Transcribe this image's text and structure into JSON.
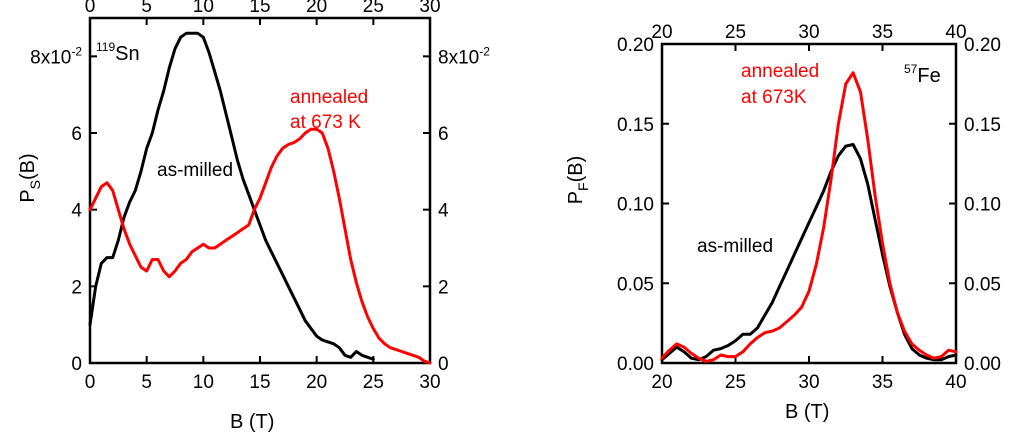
{
  "chart_data": [
    {
      "type": "line",
      "xlabel": "B (T)",
      "ylabel": "P",
      "ylabel_sub": "S",
      "ylabel_suffix": "(B)",
      "isotope_sup": "119",
      "isotope": "Sn",
      "xlim": [
        0,
        30
      ],
      "ylim": [
        0,
        9
      ],
      "x_ticks": [
        0,
        5,
        10,
        15,
        20,
        25,
        30
      ],
      "x_tick_labels": [
        "0",
        "5",
        "10",
        "15",
        "20",
        "25",
        "30"
      ],
      "y_ticks": [
        0,
        2,
        4,
        6,
        8
      ],
      "y_tick_labels": [
        "0",
        "2",
        "4",
        "6",
        "8x10"
      ],
      "y_exp": "-2",
      "grid": false,
      "annotations": [
        {
          "text": "as-milled",
          "color": "#000000"
        },
        {
          "text": "annealed",
          "color": "#ff0000"
        },
        {
          "text": "at 673 K",
          "color": "#ff0000"
        }
      ],
      "series": [
        {
          "color": "#000000",
          "x": [
            0,
            0.5,
            1,
            1.5,
            2,
            2.5,
            3,
            3.5,
            4,
            4.5,
            5,
            5.5,
            6,
            6.5,
            7,
            7.5,
            8,
            8.5,
            9,
            9.5,
            10,
            10.5,
            11,
            11.5,
            12,
            12.5,
            13,
            13.5,
            14,
            14.5,
            15,
            15.5,
            16,
            16.5,
            17,
            17.5,
            18,
            18.5,
            19,
            19.5,
            20,
            20.5,
            21,
            21.5,
            22,
            22.5,
            23,
            23.5,
            24,
            24.5,
            25
          ],
          "y": [
            1.0,
            2.0,
            2.6,
            2.75,
            2.75,
            3.2,
            3.8,
            4.2,
            4.5,
            5.0,
            5.6,
            6.0,
            6.6,
            7.1,
            7.7,
            8.2,
            8.5,
            8.6,
            8.6,
            8.6,
            8.5,
            8.1,
            7.6,
            7.1,
            6.5,
            5.9,
            5.3,
            4.8,
            4.4,
            4.0,
            3.6,
            3.2,
            2.9,
            2.6,
            2.3,
            2.0,
            1.7,
            1.4,
            1.1,
            0.9,
            0.7,
            0.6,
            0.55,
            0.5,
            0.4,
            0.2,
            0.15,
            0.3,
            0.2,
            0.15,
            0.1
          ]
        },
        {
          "color": "#ff0000",
          "x": [
            0,
            0.5,
            1,
            1.5,
            2,
            2.5,
            3,
            3.5,
            4,
            4.5,
            5,
            5.5,
            6,
            6.5,
            7,
            7.5,
            8,
            8.5,
            9,
            9.5,
            10,
            10.5,
            11,
            11.5,
            12,
            12.5,
            13,
            13.5,
            14,
            14.5,
            15,
            15.5,
            16,
            16.5,
            17,
            17.5,
            18,
            18.5,
            19,
            19.5,
            20,
            20.5,
            21,
            21.5,
            22,
            22.5,
            23,
            23.5,
            24,
            24.5,
            25,
            25.5,
            26,
            26.5,
            27,
            27.5,
            28,
            28.5,
            29,
            29.5,
            30
          ],
          "y": [
            4.0,
            4.3,
            4.6,
            4.7,
            4.5,
            4.0,
            3.5,
            3.1,
            2.8,
            2.5,
            2.4,
            2.7,
            2.7,
            2.4,
            2.25,
            2.4,
            2.6,
            2.7,
            2.9,
            3.0,
            3.1,
            3.0,
            3.0,
            3.1,
            3.2,
            3.3,
            3.4,
            3.5,
            3.6,
            4.0,
            4.3,
            4.7,
            5.1,
            5.4,
            5.6,
            5.7,
            5.75,
            5.85,
            6.0,
            6.1,
            6.1,
            6.0,
            5.6,
            5.0,
            4.3,
            3.5,
            2.7,
            2.1,
            1.6,
            1.2,
            0.9,
            0.65,
            0.5,
            0.4,
            0.35,
            0.3,
            0.25,
            0.2,
            0.15,
            0.05,
            0.0
          ]
        }
      ]
    },
    {
      "type": "line",
      "xlabel": "B (T)",
      "ylabel": "P",
      "ylabel_sub": "F",
      "ylabel_suffix": "(B)",
      "isotope_sup": "57",
      "isotope": "Fe",
      "xlim": [
        20,
        40
      ],
      "ylim": [
        0,
        0.2
      ],
      "x_ticks": [
        20,
        25,
        30,
        35,
        40
      ],
      "x_tick_labels": [
        "20",
        "25",
        "30",
        "35",
        "40"
      ],
      "y_ticks": [
        0,
        0.05,
        0.1,
        0.15,
        0.2
      ],
      "y_tick_labels": [
        "0.00",
        "0.05",
        "0.10",
        "0.15",
        "0.20"
      ],
      "grid": false,
      "annotations": [
        {
          "text": "as-milled",
          "color": "#000000"
        },
        {
          "text": "annealed",
          "color": "#ff0000"
        },
        {
          "text": "at 673K",
          "color": "#ff0000"
        }
      ],
      "series": [
        {
          "color": "#000000",
          "x": [
            20,
            20.5,
            21,
            21.5,
            22,
            22.5,
            23,
            23.5,
            24,
            24.5,
            25,
            25.5,
            26,
            26.5,
            27,
            27.5,
            28,
            28.5,
            29,
            29.5,
            30,
            30.5,
            31,
            31.5,
            32,
            32.5,
            33,
            33.5,
            34,
            34.5,
            35,
            35.5,
            36,
            36.5,
            37,
            37.5,
            38,
            38.5,
            39,
            39.5,
            40
          ],
          "y": [
            0.002,
            0.006,
            0.01,
            0.007,
            0.003,
            0.002,
            0.004,
            0.008,
            0.009,
            0.011,
            0.014,
            0.018,
            0.018,
            0.022,
            0.03,
            0.038,
            0.048,
            0.058,
            0.068,
            0.078,
            0.088,
            0.098,
            0.108,
            0.12,
            0.13,
            0.136,
            0.137,
            0.128,
            0.112,
            0.09,
            0.068,
            0.048,
            0.032,
            0.018,
            0.009,
            0.005,
            0.003,
            0.002,
            0.002,
            0.004,
            0.005
          ]
        },
        {
          "color": "#ff0000",
          "x": [
            20,
            20.5,
            21,
            21.5,
            22,
            22.5,
            23,
            23.5,
            24,
            24.5,
            25,
            25.5,
            26,
            26.5,
            27,
            27.5,
            28,
            28.5,
            29,
            29.5,
            30,
            30.5,
            31,
            31.5,
            32,
            32.5,
            33,
            33.5,
            34,
            34.5,
            35,
            35.5,
            36,
            36.5,
            37,
            37.5,
            38,
            38.5,
            39,
            39.5,
            40
          ],
          "y": [
            0.003,
            0.008,
            0.012,
            0.01,
            0.006,
            0.003,
            0.001,
            0.002,
            0.005,
            0.004,
            0.004,
            0.007,
            0.012,
            0.016,
            0.019,
            0.02,
            0.022,
            0.026,
            0.03,
            0.035,
            0.045,
            0.062,
            0.085,
            0.115,
            0.15,
            0.175,
            0.182,
            0.17,
            0.14,
            0.105,
            0.075,
            0.05,
            0.032,
            0.02,
            0.012,
            0.008,
            0.005,
            0.003,
            0.004,
            0.008,
            0.007
          ]
        }
      ]
    }
  ]
}
